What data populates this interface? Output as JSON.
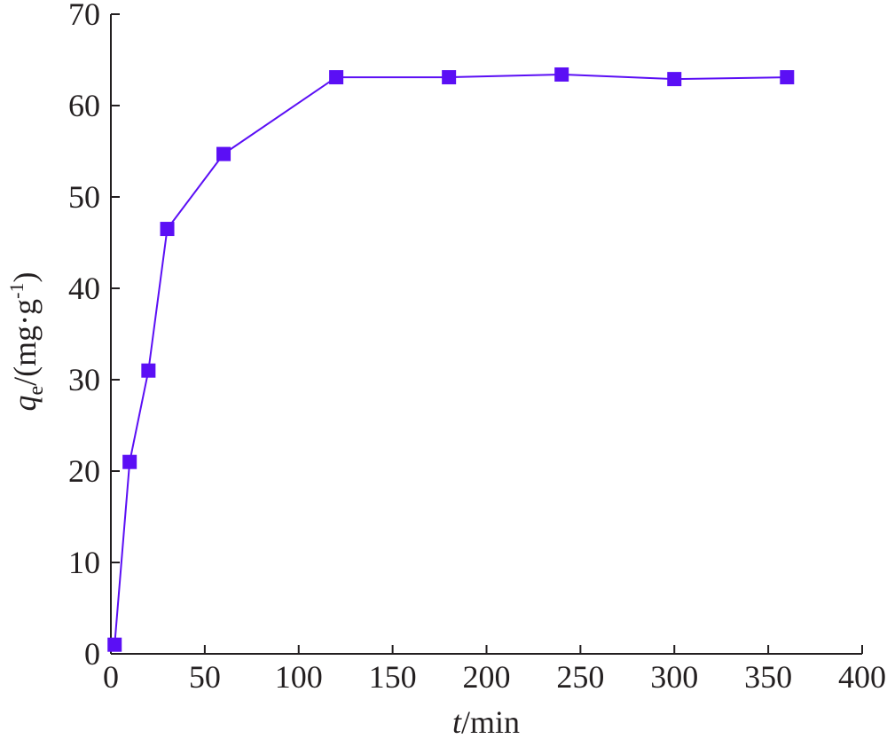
{
  "chart_data": {
    "type": "line",
    "x": [
      2,
      10,
      20,
      30,
      60,
      120,
      180,
      240,
      300,
      360
    ],
    "series": [
      {
        "color": "#5b0ff5",
        "values": [
          1.0,
          21,
          31,
          46.5,
          54.7,
          63.1,
          63.1,
          63.4,
          62.9,
          63.1
        ]
      }
    ],
    "xlim": [
      0,
      400
    ],
    "xticks": [
      0,
      50,
      100,
      150,
      200,
      250,
      300,
      350,
      400
    ],
    "ylim": [
      0,
      70
    ],
    "yticks": [
      0,
      10,
      20,
      30,
      40,
      50,
      60,
      70
    ],
    "x_label": {
      "symbol": "t",
      "unit": "/min"
    },
    "y_label": {
      "symbol": "q",
      "subscript": "e",
      "unit": "/(mg·g",
      "superscript": "-1",
      "close": ")"
    },
    "grid": false
  }
}
